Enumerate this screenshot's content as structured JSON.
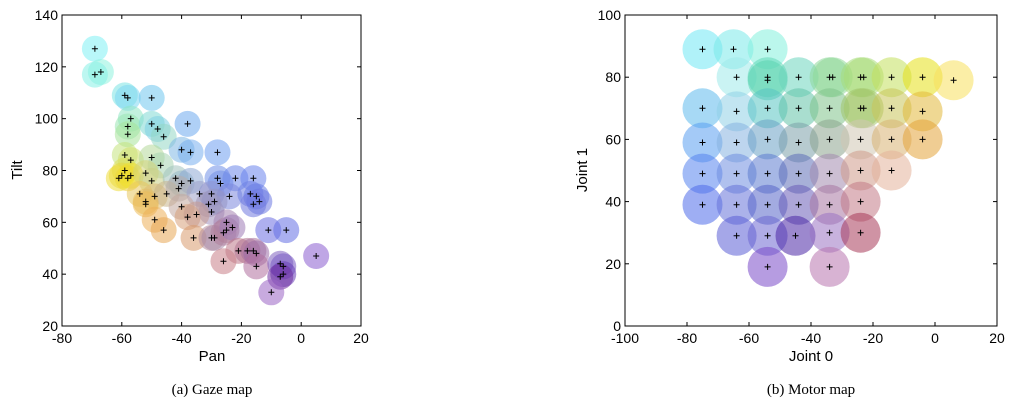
{
  "chart_data": [
    {
      "type": "scatter",
      "title": "",
      "caption": "(a) Gaze map",
      "xlabel": "Pan",
      "ylabel": "Tilt",
      "xlim": [
        -80,
        20
      ],
      "ylim": [
        20,
        140
      ],
      "xticks": [
        -80,
        -60,
        -40,
        -20,
        0,
        20
      ],
      "yticks": [
        20,
        40,
        60,
        80,
        100,
        120,
        140
      ],
      "grid": false,
      "legend": "none",
      "points": [
        {
          "x": -69,
          "y": 127,
          "color": "#7ff0f4"
        },
        {
          "x": -67,
          "y": 118,
          "color": "#8ff3df"
        },
        {
          "x": -69,
          "y": 117,
          "color": "#86f1e6"
        },
        {
          "x": -59,
          "y": 109,
          "color": "#7be3e3"
        },
        {
          "x": -58,
          "y": 108,
          "color": "#7ed7f2"
        },
        {
          "x": -50,
          "y": 108,
          "color": "#6fc6ee"
        },
        {
          "x": -57,
          "y": 100,
          "color": "#8fe6c3"
        },
        {
          "x": -58,
          "y": 97,
          "color": "#9ae6b3"
        },
        {
          "x": -50,
          "y": 98,
          "color": "#7fd8d3"
        },
        {
          "x": -48,
          "y": 96,
          "color": "#80cfe3"
        },
        {
          "x": -38,
          "y": 98,
          "color": "#6ea9ee"
        },
        {
          "x": -58,
          "y": 94,
          "color": "#a8e49a"
        },
        {
          "x": -46,
          "y": 93,
          "color": "#93d7c4"
        },
        {
          "x": -40,
          "y": 88,
          "color": "#7fb8e4"
        },
        {
          "x": -37,
          "y": 87,
          "color": "#78aeee"
        },
        {
          "x": -28,
          "y": 87,
          "color": "#6d9ff0"
        },
        {
          "x": -59,
          "y": 86,
          "color": "#c4e37e"
        },
        {
          "x": -57,
          "y": 84,
          "color": "#cfe06e"
        },
        {
          "x": -50,
          "y": 85,
          "color": "#b5d99a"
        },
        {
          "x": -47,
          "y": 82,
          "color": "#a7d3b2"
        },
        {
          "x": -59,
          "y": 80,
          "color": "#dde05a"
        },
        {
          "x": -60,
          "y": 78,
          "color": "#e6d940"
        },
        {
          "x": -58,
          "y": 77,
          "color": "#edd23b"
        },
        {
          "x": -61,
          "y": 77,
          "color": "#eedc3a"
        },
        {
          "x": -57,
          "y": 78,
          "color": "#f0e02c"
        },
        {
          "x": -52,
          "y": 79,
          "color": "#d4d47a"
        },
        {
          "x": -50,
          "y": 76,
          "color": "#c9cf86"
        },
        {
          "x": -42,
          "y": 77,
          "color": "#a2c2bd"
        },
        {
          "x": -40,
          "y": 75,
          "color": "#98b9c7"
        },
        {
          "x": -37,
          "y": 76,
          "color": "#8eaad6"
        },
        {
          "x": -28,
          "y": 77,
          "color": "#6f8fe8"
        },
        {
          "x": -27,
          "y": 75,
          "color": "#7591e6"
        },
        {
          "x": -22,
          "y": 77,
          "color": "#6b87ea"
        },
        {
          "x": -16,
          "y": 77,
          "color": "#6a83ec"
        },
        {
          "x": -54,
          "y": 71,
          "color": "#e7c75e"
        },
        {
          "x": -52,
          "y": 68,
          "color": "#e8bd5e"
        },
        {
          "x": -49,
          "y": 70,
          "color": "#dcbc72"
        },
        {
          "x": -45,
          "y": 71,
          "color": "#c9b48d"
        },
        {
          "x": -41,
          "y": 73,
          "color": "#b6adab"
        },
        {
          "x": -34,
          "y": 71,
          "color": "#9ca0c9"
        },
        {
          "x": -30,
          "y": 71,
          "color": "#8f96d2"
        },
        {
          "x": -24,
          "y": 70,
          "color": "#7c86dc"
        },
        {
          "x": -17,
          "y": 71,
          "color": "#6e7fe4"
        },
        {
          "x": -15,
          "y": 70,
          "color": "#6a7de6"
        },
        {
          "x": -14,
          "y": 68,
          "color": "#6b78e2"
        },
        {
          "x": -16,
          "y": 67,
          "color": "#7079de"
        },
        {
          "x": -52,
          "y": 67,
          "color": "#ecbb58"
        },
        {
          "x": -40,
          "y": 66,
          "color": "#c3a79e"
        },
        {
          "x": -31,
          "y": 67,
          "color": "#a197b7"
        },
        {
          "x": -30,
          "y": 64,
          "color": "#a090bb"
        },
        {
          "x": -29,
          "y": 68,
          "color": "#9694c2"
        },
        {
          "x": -49,
          "y": 61,
          "color": "#ecae58"
        },
        {
          "x": -46,
          "y": 57,
          "color": "#e8a856"
        },
        {
          "x": -38,
          "y": 62,
          "color": "#d7a17a"
        },
        {
          "x": -35,
          "y": 63,
          "color": "#c79b8f"
        },
        {
          "x": -36,
          "y": 54,
          "color": "#d89a6e"
        },
        {
          "x": -30,
          "y": 54,
          "color": "#b48e9d"
        },
        {
          "x": -29,
          "y": 54,
          "color": "#a98aa9"
        },
        {
          "x": -25,
          "y": 57,
          "color": "#b57f95"
        },
        {
          "x": -25,
          "y": 60,
          "color": "#a684b1"
        },
        {
          "x": -26,
          "y": 56,
          "color": "#b07f9d"
        },
        {
          "x": -23,
          "y": 58,
          "color": "#9e7cb6"
        },
        {
          "x": -11,
          "y": 57,
          "color": "#6b6ee2"
        },
        {
          "x": -5,
          "y": 57,
          "color": "#6570e4"
        },
        {
          "x": -21,
          "y": 49,
          "color": "#c07a8a"
        },
        {
          "x": -18,
          "y": 49,
          "color": "#b37592"
        },
        {
          "x": -16,
          "y": 49,
          "color": "#a8719c"
        },
        {
          "x": -15,
          "y": 48,
          "color": "#9d6da8"
        },
        {
          "x": -26,
          "y": 45,
          "color": "#c98089"
        },
        {
          "x": -15,
          "y": 43,
          "color": "#b0709e"
        },
        {
          "x": -7,
          "y": 44,
          "color": "#8060c0"
        },
        {
          "x": -6,
          "y": 43,
          "color": "#7a5bc5"
        },
        {
          "x": -6,
          "y": 40,
          "color": "#6a3fb8"
        },
        {
          "x": -7,
          "y": 39,
          "color": "#7030a0"
        },
        {
          "x": 5,
          "y": 47,
          "color": "#8a5cd0"
        },
        {
          "x": -10,
          "y": 33,
          "color": "#9a64c4"
        }
      ]
    },
    {
      "type": "scatter",
      "title": "",
      "caption": "(b) Motor map",
      "xlabel": "Joint 0",
      "ylabel": "Joint 1",
      "xlim": [
        -100,
        20
      ],
      "ylim": [
        0,
        100
      ],
      "xticks": [
        -100,
        -80,
        -60,
        -40,
        -20,
        0,
        20
      ],
      "yticks": [
        0,
        20,
        40,
        60,
        80,
        100
      ],
      "grid": false,
      "legend": "none",
      "points": [
        {
          "x": -75,
          "y": 89,
          "color": "#6fe8f4"
        },
        {
          "x": -65,
          "y": 89,
          "color": "#7ae9ea"
        },
        {
          "x": -54,
          "y": 89,
          "color": "#84f0dc"
        },
        {
          "x": -64,
          "y": 80,
          "color": "#9fe9e9"
        },
        {
          "x": -54,
          "y": 80,
          "color": "#62d8b8"
        },
        {
          "x": -54,
          "y": 79,
          "color": "#5bd4b0"
        },
        {
          "x": -44,
          "y": 80,
          "color": "#6cd5bd"
        },
        {
          "x": -34,
          "y": 80,
          "color": "#8ed79a"
        },
        {
          "x": -33,
          "y": 80,
          "color": "#8fd898"
        },
        {
          "x": -24,
          "y": 80,
          "color": "#a6dc7c"
        },
        {
          "x": -23,
          "y": 80,
          "color": "#a9dd78"
        },
        {
          "x": -14,
          "y": 80,
          "color": "#c2e05c"
        },
        {
          "x": -4,
          "y": 80,
          "color": "#e6e018"
        },
        {
          "x": 6,
          "y": 79,
          "color": "#f8e05c"
        },
        {
          "x": -75,
          "y": 70,
          "color": "#5fb9ec"
        },
        {
          "x": -64,
          "y": 69,
          "color": "#8fd0e6"
        },
        {
          "x": -54,
          "y": 70,
          "color": "#57c4c2"
        },
        {
          "x": -44,
          "y": 70,
          "color": "#62c3a7"
        },
        {
          "x": -34,
          "y": 70,
          "color": "#80c38b"
        },
        {
          "x": -24,
          "y": 70,
          "color": "#a1c56b"
        },
        {
          "x": -23,
          "y": 70,
          "color": "#a4c669"
        },
        {
          "x": -14,
          "y": 70,
          "color": "#c8c45a"
        },
        {
          "x": -4,
          "y": 69,
          "color": "#e2b83a"
        },
        {
          "x": -75,
          "y": 59,
          "color": "#5a9ef0"
        },
        {
          "x": -64,
          "y": 59,
          "color": "#86b3e0"
        },
        {
          "x": -54,
          "y": 60,
          "color": "#6aa0c4"
        },
        {
          "x": -44,
          "y": 59,
          "color": "#7ca0aa"
        },
        {
          "x": -34,
          "y": 60,
          "color": "#8da48e"
        },
        {
          "x": -24,
          "y": 60,
          "color": "#d0c7b2"
        },
        {
          "x": -14,
          "y": 60,
          "color": "#d9b273"
        },
        {
          "x": -4,
          "y": 60,
          "color": "#e3a43a"
        },
        {
          "x": -75,
          "y": 49,
          "color": "#5683ee"
        },
        {
          "x": -64,
          "y": 49,
          "color": "#6f8ee0"
        },
        {
          "x": -54,
          "y": 49,
          "color": "#5c7cd0"
        },
        {
          "x": -44,
          "y": 49,
          "color": "#5f6fb8"
        },
        {
          "x": -34,
          "y": 49,
          "color": "#a38bae"
        },
        {
          "x": -24,
          "y": 50,
          "color": "#cf9b8a"
        },
        {
          "x": -14,
          "y": 50,
          "color": "#e3b39a"
        },
        {
          "x": -75,
          "y": 39,
          "color": "#4f6bea"
        },
        {
          "x": -64,
          "y": 39,
          "color": "#6672d8"
        },
        {
          "x": -54,
          "y": 39,
          "color": "#5866c8"
        },
        {
          "x": -44,
          "y": 39,
          "color": "#6a5db8"
        },
        {
          "x": -34,
          "y": 39,
          "color": "#a877a2"
        },
        {
          "x": -24,
          "y": 40,
          "color": "#c27a86"
        },
        {
          "x": -64,
          "y": 29,
          "color": "#5b5ed6"
        },
        {
          "x": -54,
          "y": 29,
          "color": "#6e68d2"
        },
        {
          "x": -45,
          "y": 29,
          "color": "#4a26a6"
        },
        {
          "x": -34,
          "y": 30,
          "color": "#9a72c2"
        },
        {
          "x": -24,
          "y": 30,
          "color": "#a83a5a"
        },
        {
          "x": -54,
          "y": 19,
          "color": "#7a4ac8"
        },
        {
          "x": -34,
          "y": 19,
          "color": "#b874ae"
        }
      ]
    }
  ]
}
